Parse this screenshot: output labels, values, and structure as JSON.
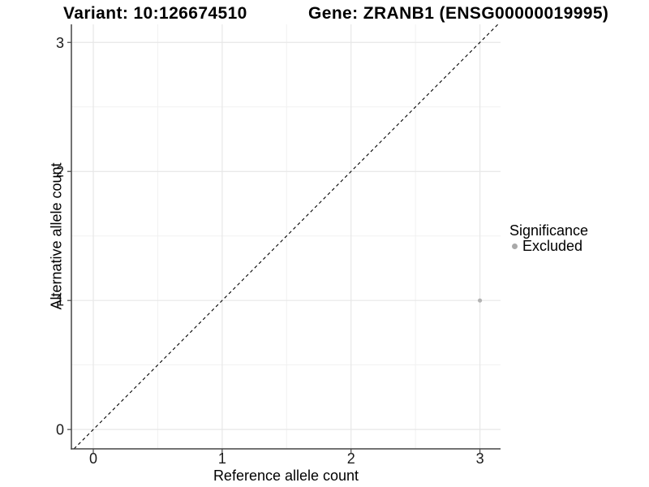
{
  "header": {
    "variant_title": "Variant: 10:126674510",
    "gene_title": "Gene: ZRANB1 (ENSG00000019995)"
  },
  "legend": {
    "title": "Significance",
    "items": [
      {
        "label": "Excluded",
        "swatch_color": "#a9a9a9"
      }
    ]
  },
  "colors": {
    "background": "#ffffff",
    "title_text": "#000000",
    "tick_text": "#1a1a1a",
    "axis_line": "#454545",
    "grid_major": "#e7e7e7",
    "grid_minor": "#f1f1f1",
    "identity_line": "#000000",
    "point": "#b3b3b3"
  },
  "chart_data": {
    "type": "scatter",
    "title": "Variant: 10:126674510 | Gene: ZRANB1 (ENSG00000019995)",
    "xlabel": "Reference allele count",
    "ylabel": "Alternative allele count",
    "xlim": [
      -0.17,
      3.16
    ],
    "ylim": [
      -0.15,
      3.14
    ],
    "x_ticks": [
      0,
      1,
      2,
      3
    ],
    "x_tick_labels": [
      "0",
      "1",
      "2",
      "3"
    ],
    "y_ticks": [
      0,
      1,
      2,
      3
    ],
    "y_tick_labels": [
      "0",
      "1",
      "2",
      "3"
    ],
    "x_minor_ticks": [
      0.5,
      1.5,
      2.5
    ],
    "y_minor_ticks": [
      0.5,
      1.5,
      2.5
    ],
    "grid": true,
    "legend_position": "right",
    "identity_line": {
      "slope": 1,
      "intercept": 0,
      "style": "dashed"
    },
    "series": [
      {
        "name": "Excluded",
        "color": "#b3b3b3",
        "points": [
          {
            "x": 3,
            "y": 1
          }
        ]
      }
    ]
  }
}
